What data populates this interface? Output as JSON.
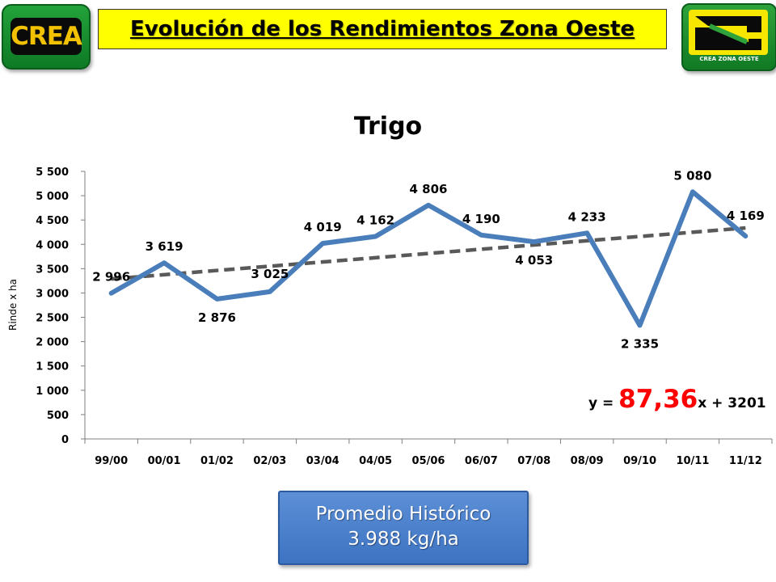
{
  "header": {
    "title": "Evolución de los Rendimientos Zona Oeste",
    "logo_left_text": "CREA",
    "logo_right_caption": "CREA ZONA OESTE"
  },
  "colors": {
    "series": "#4a7ebb",
    "trend": "#595959",
    "title_bg": "#ffff00",
    "slope": "#ff0000"
  },
  "chart_data": {
    "type": "line",
    "title": "Trigo",
    "xlabel": "",
    "ylabel": "Rinde x ha",
    "ylim": [
      0,
      5500
    ],
    "yticks": [
      0,
      500,
      1000,
      1500,
      2000,
      2500,
      3000,
      3500,
      4000,
      4500,
      5000,
      5500
    ],
    "ytick_labels": [
      "0",
      "500",
      "1 000",
      "1 500",
      "2 000",
      "2 500",
      "3 000",
      "3 500",
      "4 000",
      "4 500",
      "5 000",
      "5 500"
    ],
    "categories": [
      "99/00",
      "00/01",
      "01/02",
      "02/03",
      "03/04",
      "04/05",
      "05/06",
      "06/07",
      "07/08",
      "08/09",
      "09/10",
      "10/11",
      "11/12"
    ],
    "values": [
      2996,
      3619,
      2876,
      3025,
      4019,
      4162,
      4806,
      4190,
      4053,
      4233,
      2335,
      5080,
      4169
    ],
    "data_labels": [
      "2 996",
      "3 619",
      "2 876",
      "3 025",
      "4 019",
      "4 162",
      "4 806",
      "4 190",
      "4 053",
      "4 233",
      "2 335",
      "5 080",
      "4 169"
    ],
    "trendline": {
      "type": "linear",
      "slope": 87.36,
      "intercept": 3201
    },
    "grid": false,
    "legend": "none"
  },
  "equation": {
    "prefix": "y = ",
    "slope": "87,36",
    "suffix": "x + 3201"
  },
  "average_box": {
    "line1": "Promedio Histórico",
    "line2": "3.988 kg/ha"
  }
}
